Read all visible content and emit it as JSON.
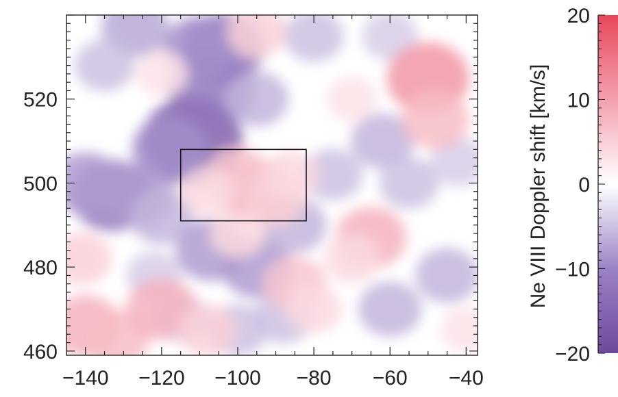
{
  "chart_data": [
    {
      "type": "heatmap",
      "title": "",
      "xlabel": "",
      "ylabel": "",
      "xlim": [
        -145,
        -37
      ],
      "ylim": [
        459,
        540
      ],
      "x_ticks": [
        -140,
        -120,
        -100,
        -80,
        -60,
        -40
      ],
      "x_tick_labels": [
        "−140",
        "−120",
        "−100",
        "−80",
        "−60",
        "−40"
      ],
      "y_ticks": [
        460,
        480,
        500,
        520
      ],
      "y_tick_labels": [
        "460",
        "480",
        "500",
        "520"
      ],
      "grid": false,
      "highlight_box": {
        "x": [
          -115,
          -82
        ],
        "y": [
          491,
          508
        ]
      },
      "blobs": [
        {
          "x": -112,
          "y": 510,
          "v": -16
        },
        {
          "x": -107,
          "y": 522,
          "v": -12
        },
        {
          "x": -104,
          "y": 532,
          "v": -11
        },
        {
          "x": -110,
          "y": 532,
          "v": -9
        },
        {
          "x": -118,
          "y": 508,
          "v": -9
        },
        {
          "x": -133,
          "y": 497,
          "v": -11
        },
        {
          "x": -140,
          "y": 500,
          "v": -8
        },
        {
          "x": -126,
          "y": 497,
          "v": -8
        },
        {
          "x": -120,
          "y": 492,
          "v": -6
        },
        {
          "x": -127,
          "y": 537,
          "v": -7
        },
        {
          "x": -135,
          "y": 528,
          "v": -5
        },
        {
          "x": -95,
          "y": 520,
          "v": -6
        },
        {
          "x": -107,
          "y": 484,
          "v": -8
        },
        {
          "x": -95,
          "y": 480,
          "v": -8
        },
        {
          "x": -85,
          "y": 490,
          "v": -6
        },
        {
          "x": -88,
          "y": 468,
          "v": -5
        },
        {
          "x": -75,
          "y": 502,
          "v": -5
        },
        {
          "x": -62,
          "y": 510,
          "v": -6
        },
        {
          "x": -55,
          "y": 500,
          "v": -5
        },
        {
          "x": -45,
          "y": 478,
          "v": -6
        },
        {
          "x": -60,
          "y": 470,
          "v": -6
        },
        {
          "x": -42,
          "y": 505,
          "v": -4
        },
        {
          "x": -100,
          "y": 465,
          "v": -5
        },
        {
          "x": -122,
          "y": 478,
          "v": -4
        },
        {
          "x": -115,
          "y": 468,
          "v": -4
        },
        {
          "x": -80,
          "y": 535,
          "v": -5
        },
        {
          "x": -60,
          "y": 535,
          "v": -4
        },
        {
          "x": -95,
          "y": 498,
          "v": 9
        },
        {
          "x": -100,
          "y": 502,
          "v": 6
        },
        {
          "x": -90,
          "y": 496,
          "v": 5
        },
        {
          "x": -108,
          "y": 498,
          "v": 4
        },
        {
          "x": -86,
          "y": 502,
          "v": 4
        },
        {
          "x": -50,
          "y": 525,
          "v": 11
        },
        {
          "x": -48,
          "y": 515,
          "v": 7
        },
        {
          "x": -140,
          "y": 466,
          "v": 8
        },
        {
          "x": -132,
          "y": 463,
          "v": 7
        },
        {
          "x": -120,
          "y": 470,
          "v": 8
        },
        {
          "x": -108,
          "y": 465,
          "v": 5
        },
        {
          "x": -85,
          "y": 476,
          "v": 6
        },
        {
          "x": -80,
          "y": 470,
          "v": 4
        },
        {
          "x": -65,
          "y": 487,
          "v": 8
        },
        {
          "x": -70,
          "y": 482,
          "v": 4
        },
        {
          "x": -141,
          "y": 482,
          "v": 5
        },
        {
          "x": -95,
          "y": 536,
          "v": 5
        },
        {
          "x": -120,
          "y": 526,
          "v": 3
        },
        {
          "x": -70,
          "y": 520,
          "v": 3
        },
        {
          "x": -40,
          "y": 465,
          "v": 3
        },
        {
          "x": -100,
          "y": 488,
          "v": 4
        }
      ]
    },
    {
      "type": "colorbar",
      "label": "Ne VIII  Doppler shift  [km/s]",
      "vlim": [
        -20,
        20
      ],
      "ticks": [
        20,
        10,
        0,
        -10,
        -20
      ],
      "tick_labels": [
        "20",
        "10",
        "0",
        "−10",
        "−20"
      ],
      "stops": [
        {
          "v": -20,
          "color": "#6e4a9e"
        },
        {
          "v": -10,
          "color": "#9b82c4"
        },
        {
          "v": 0,
          "color": "#ffffff"
        },
        {
          "v": 10,
          "color": "#f3a0ae"
        },
        {
          "v": 20,
          "color": "#e8485c"
        }
      ]
    }
  ]
}
